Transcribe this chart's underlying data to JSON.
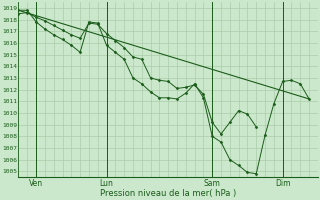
{
  "xlabel": "Pression niveau de la mer( hPa )",
  "ylim": [
    1004.5,
    1019.5
  ],
  "yticks": [
    1005,
    1006,
    1007,
    1008,
    1009,
    1010,
    1011,
    1012,
    1013,
    1014,
    1015,
    1016,
    1017,
    1018,
    1019
  ],
  "day_labels": [
    "Ven",
    "Lun",
    "Sam",
    "Dim"
  ],
  "day_positions": [
    2,
    10,
    22,
    30
  ],
  "xlim": [
    0,
    34
  ],
  "bg_color": "#cce8cc",
  "grid_color": "#aaccaa",
  "dark_green": "#1a5c1a",
  "line1_x": [
    0,
    1,
    2,
    3,
    4,
    5,
    6,
    7,
    8,
    9,
    10,
    11,
    12,
    13,
    14,
    15,
    16,
    17,
    18,
    19,
    20,
    21,
    22,
    23,
    24,
    25,
    26,
    27
  ],
  "line1_y": [
    1018.5,
    1018.6,
    1018.2,
    1017.9,
    1017.5,
    1017.1,
    1016.7,
    1016.4,
    1017.7,
    1017.6,
    1016.8,
    1016.2,
    1015.6,
    1014.8,
    1014.6,
    1013.0,
    1012.8,
    1012.7,
    1012.1,
    1012.2,
    1012.4,
    1011.6,
    1009.2,
    1008.2,
    1009.2,
    1010.2,
    1009.9,
    1008.8
  ],
  "line2_x": [
    0,
    1,
    2,
    3,
    4,
    5,
    6,
    7,
    8,
    9,
    10,
    11,
    12,
    13,
    14,
    15,
    16,
    17,
    18,
    19,
    20,
    21,
    22,
    23,
    24,
    25,
    26,
    27,
    28,
    29,
    30,
    31,
    32,
    33
  ],
  "line2_y": [
    1018.8,
    1018.8,
    1017.8,
    1017.2,
    1016.7,
    1016.3,
    1015.8,
    1015.2,
    1017.8,
    1017.7,
    1015.8,
    1015.2,
    1014.6,
    1013.0,
    1012.5,
    1011.8,
    1011.3,
    1011.3,
    1011.2,
    1011.7,
    1012.5,
    1011.3,
    1008.0,
    1007.5,
    1006.0,
    1005.5,
    1004.9,
    1004.8,
    1008.1,
    1010.8,
    1012.7,
    1012.8,
    1012.5,
    1011.2
  ],
  "line3_x": [
    0,
    33
  ],
  "line3_y": [
    1018.8,
    1011.2
  ]
}
